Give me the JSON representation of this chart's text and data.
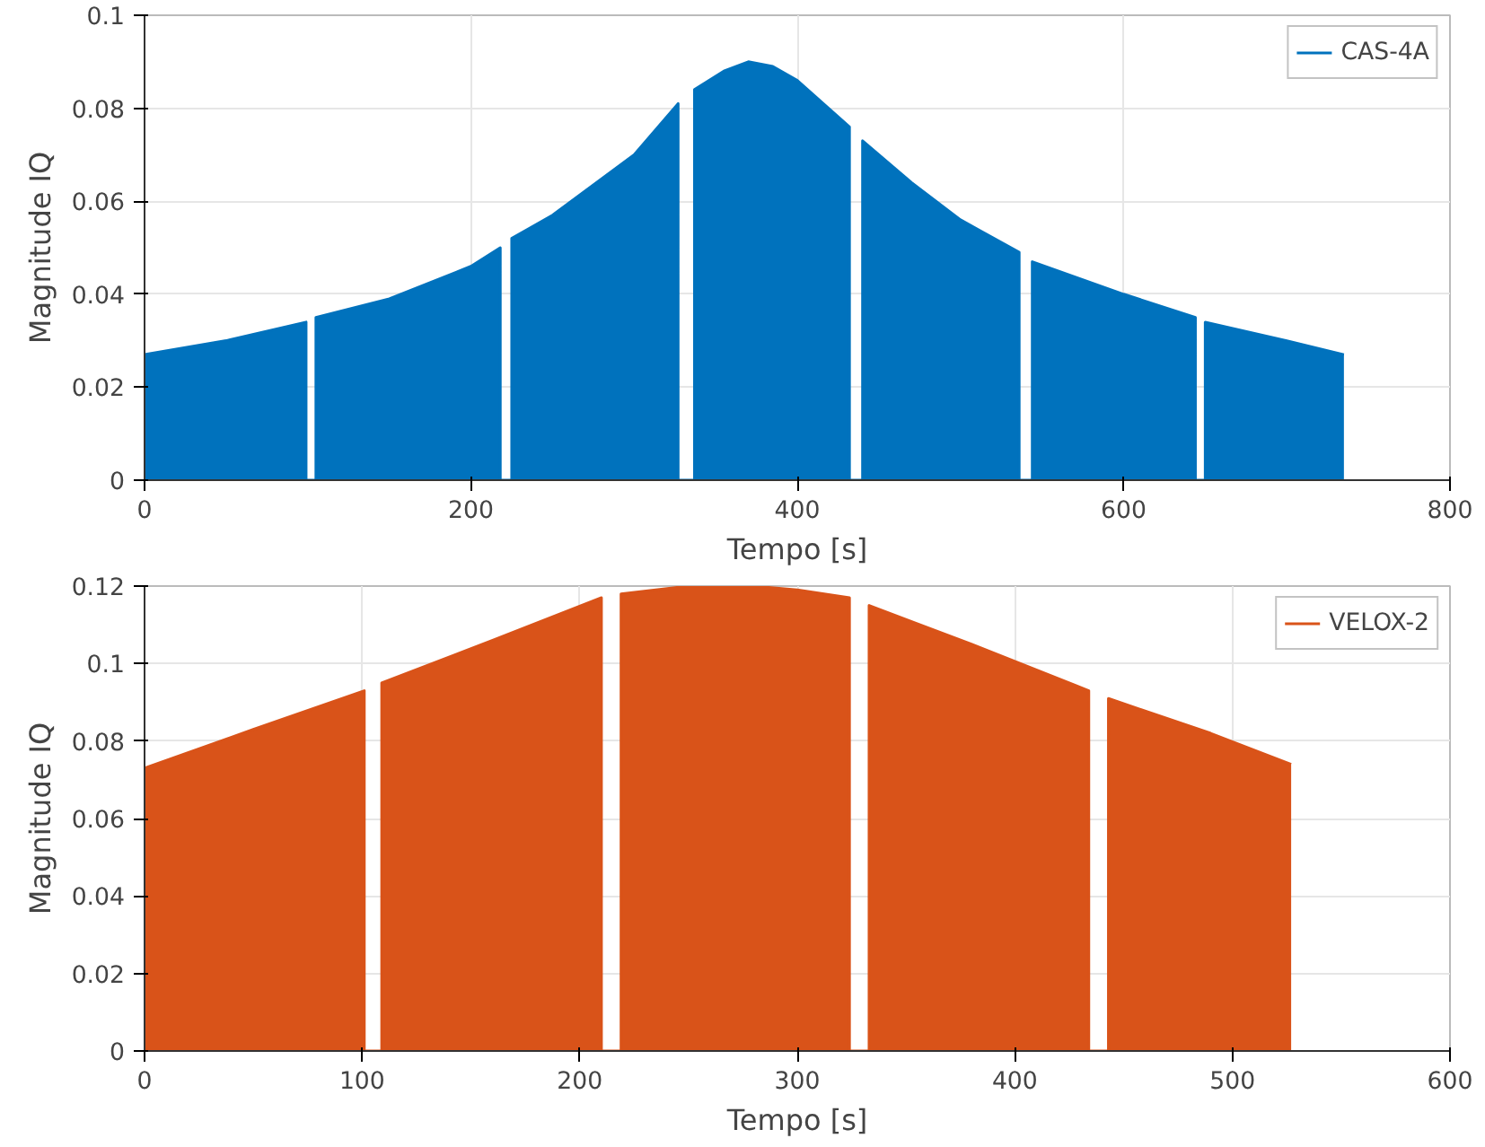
{
  "chart_data": [
    {
      "type": "area",
      "xlabel": "Tempo [s]",
      "ylabel": "Magnitude IQ",
      "xlim": [
        0,
        800
      ],
      "ylim": [
        0,
        0.1
      ],
      "xticks": [
        0,
        200,
        400,
        600,
        800
      ],
      "yticks": [
        0,
        0.02,
        0.04,
        0.06,
        0.08,
        0.1
      ],
      "grid": true,
      "legend": "top right",
      "series": [
        {
          "name": "CAS-4A",
          "color": "#0072bd",
          "x": [
            0,
            50,
            99,
            99,
            105,
            105,
            150,
            200,
            218,
            218,
            225,
            225,
            250,
            300,
            327,
            327,
            337,
            337,
            355,
            370,
            385,
            400,
            432,
            432,
            440,
            440,
            470,
            500,
            536,
            536,
            544,
            544,
            600,
            644,
            644,
            650,
            650,
            700,
            735
          ],
          "values": [
            0.027,
            0.03,
            0.034,
            0,
            0,
            0.035,
            0.039,
            0.046,
            0.05,
            0,
            0,
            0.052,
            0.057,
            0.07,
            0.081,
            0,
            0,
            0.084,
            0.088,
            0.09,
            0.089,
            0.086,
            0.076,
            0,
            0,
            0.073,
            0.064,
            0.056,
            0.049,
            0,
            0,
            0.047,
            0.04,
            0.035,
            0,
            0,
            0.034,
            0.03,
            0.027
          ]
        }
      ]
    },
    {
      "type": "area",
      "xlabel": "Tempo [s]",
      "ylabel": "Magnitude IQ",
      "xlim": [
        0,
        600
      ],
      "ylim": [
        0,
        0.12
      ],
      "xticks": [
        0,
        100,
        200,
        300,
        400,
        500,
        600
      ],
      "yticks": [
        0,
        0.02,
        0.04,
        0.06,
        0.08,
        0.1,
        0.12
      ],
      "grid": true,
      "legend": "top right",
      "series": [
        {
          "name": "VELOX-2",
          "color": "#d95319",
          "x": [
            0,
            50,
            101,
            101,
            109,
            109,
            160,
            210,
            210,
            219,
            219,
            250,
            280,
            300,
            324,
            324,
            333,
            333,
            380,
            434,
            434,
            443,
            443,
            490,
            527
          ],
          "values": [
            0.073,
            0.083,
            0.093,
            0,
            0,
            0.095,
            0.106,
            0.117,
            0,
            0,
            0.118,
            0.12,
            0.12,
            0.119,
            0.117,
            0,
            0,
            0.115,
            0.105,
            0.093,
            0,
            0,
            0.091,
            0.082,
            0.074
          ]
        }
      ]
    }
  ]
}
